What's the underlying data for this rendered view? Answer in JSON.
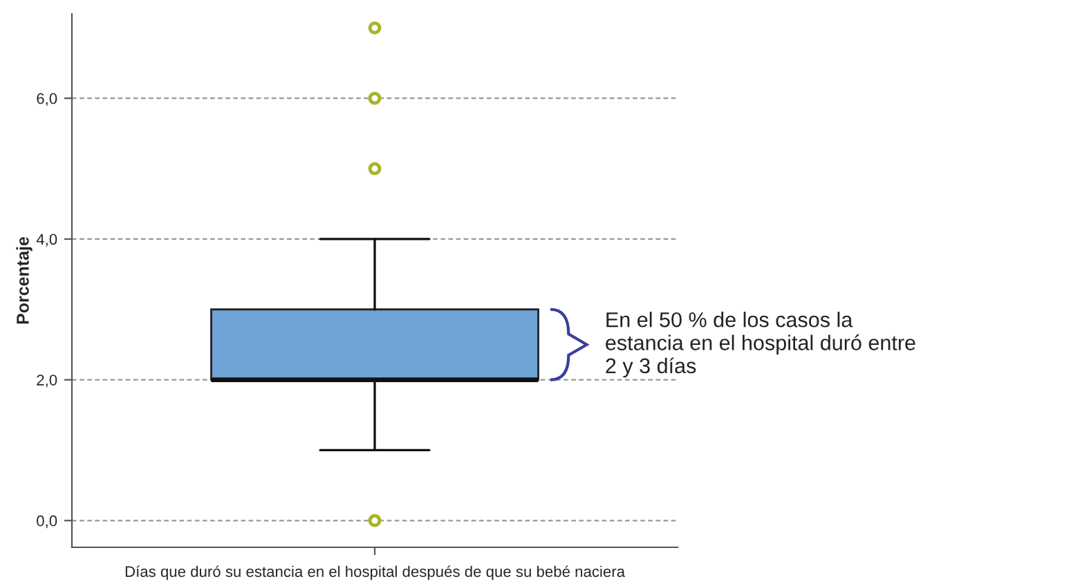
{
  "chart_data": {
    "type": "box",
    "xlabel": "Días que duró su estancia en el hospital después de que su bebé naciera",
    "ylabel": "Porcentaje",
    "categories": [
      null
    ],
    "series": [
      {
        "color": "#6fa3d5",
        "boxes": [
          {
            "low": 1,
            "q1": 2,
            "median": 2,
            "q3": 3,
            "high": 4,
            "outliers": [
              0,
              5,
              6,
              7
            ]
          }
        ]
      }
    ],
    "ylim": [
      -0.38,
      7.2
    ],
    "yticks": [
      {
        "value": 0,
        "label": "0,0"
      },
      {
        "value": 2,
        "label": "2,0"
      },
      {
        "value": 4,
        "label": "4,0"
      },
      {
        "value": 6,
        "label": "6,0"
      }
    ],
    "grid": "y",
    "annotations": [
      "En el 50 % de los casos la\nestancia en el hospital duró entre\n2 y 3 días"
    ]
  }
}
